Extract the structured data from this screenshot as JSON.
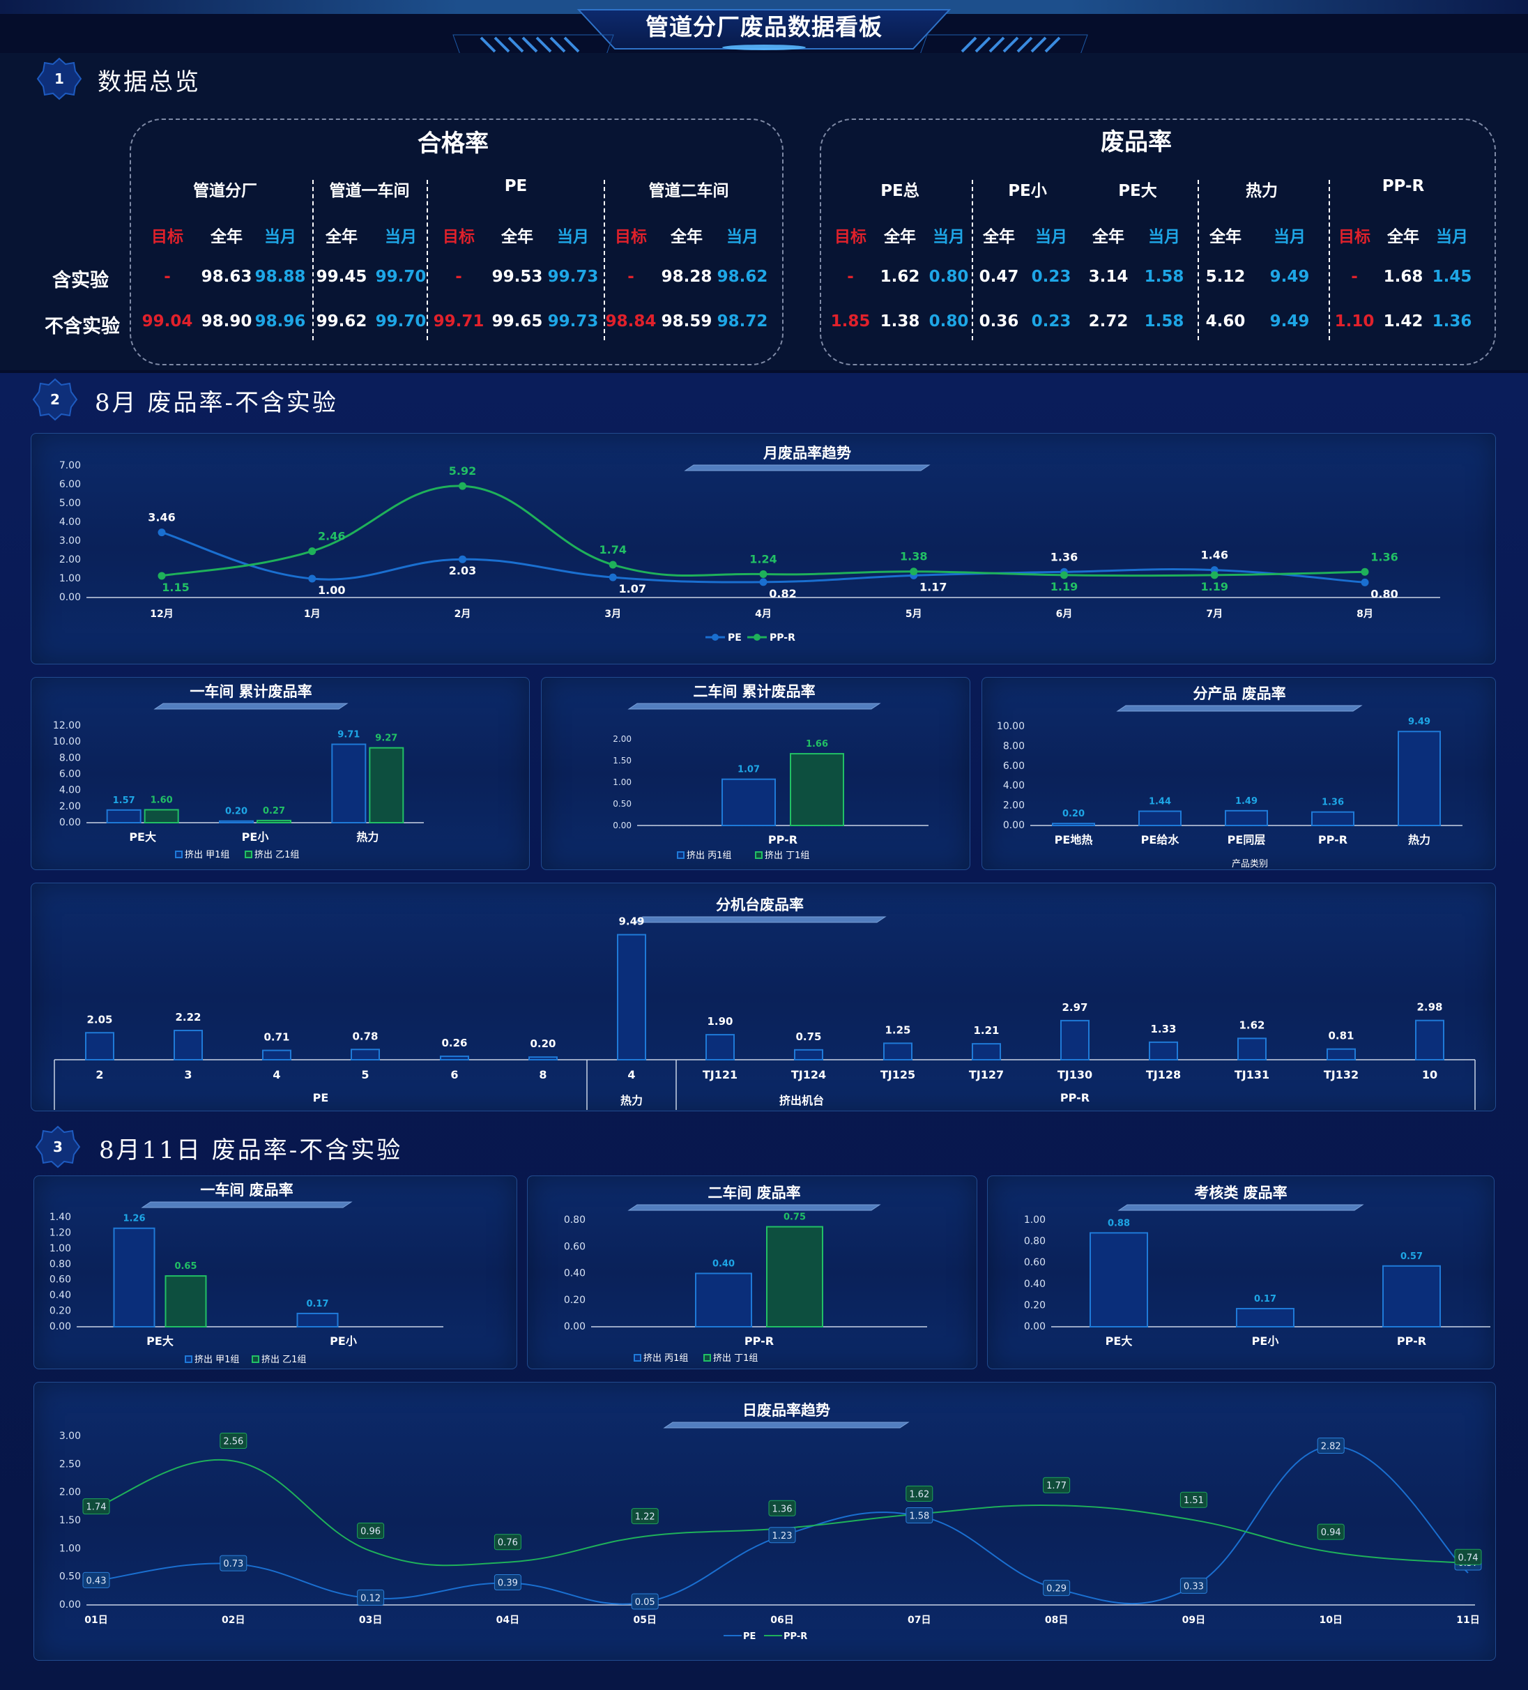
{
  "page_title": "管道分厂废品数据看板",
  "sections": [
    {
      "num": "1",
      "title": "数据总览"
    },
    {
      "num": "2",
      "title": "8月 废品率-不含实验"
    },
    {
      "num": "3",
      "title": "8月11日 废品率-不含实验"
    }
  ],
  "kpi": {
    "qualified": {
      "title": "合格率",
      "groups": [
        {
          "name": "管道分厂",
          "cols": [
            "目标",
            "全年",
            "当月"
          ],
          "rows": [
            [
              "-",
              "98.63",
              "98.88"
            ],
            [
              "99.04",
              "98.90",
              "98.96"
            ]
          ]
        },
        {
          "name": "管道一车间",
          "cols": [
            "全年",
            "当月"
          ],
          "rows": [
            [
              "99.45",
              "99.70"
            ],
            [
              "99.62",
              "99.70"
            ]
          ]
        },
        {
          "name": "PE",
          "cols": [
            "目标",
            "全年",
            "当月"
          ],
          "rows": [
            [
              "-",
              "99.53",
              "99.73"
            ],
            [
              "99.71",
              "99.65",
              "99.73"
            ]
          ]
        },
        {
          "name": "管道二车间",
          "cols": [
            "目标",
            "全年",
            "当月"
          ],
          "rows": [
            [
              "-",
              "98.28",
              "98.62"
            ],
            [
              "98.84",
              "98.59",
              "98.72"
            ]
          ]
        }
      ]
    },
    "scrap": {
      "title": "废品率",
      "groups": [
        {
          "name": "PE总",
          "cols": [
            "目标",
            "全年",
            "当月"
          ],
          "rows": [
            [
              "-",
              "1.62",
              "0.80"
            ],
            [
              "1.85",
              "1.38",
              "0.80"
            ]
          ]
        },
        {
          "name": "PE小",
          "cols": [
            "全年",
            "当月"
          ],
          "rows": [
            [
              "0.47",
              "0.23"
            ],
            [
              "0.36",
              "0.23"
            ]
          ]
        },
        {
          "name": "PE大",
          "cols": [
            "全年",
            "当月"
          ],
          "rows": [
            [
              "3.14",
              "1.58"
            ],
            [
              "2.72",
              "1.58"
            ]
          ]
        },
        {
          "name": "热力",
          "cols": [
            "全年",
            "当月"
          ],
          "rows": [
            [
              "5.12",
              "9.49"
            ],
            [
              "4.60",
              "9.49"
            ]
          ]
        },
        {
          "name": "PP-R",
          "cols": [
            "目标",
            "全年",
            "当月"
          ],
          "rows": [
            [
              "-",
              "1.68",
              "1.45"
            ],
            [
              "1.10",
              "1.42",
              "1.36"
            ]
          ]
        }
      ]
    },
    "row_labels": [
      "含实验",
      "不含实验"
    ]
  },
  "colors": {
    "blue": "#1a6fd0",
    "green": "#1fb15a",
    "bar_blue_fill": "#0a2e7a",
    "bar_blue_stroke": "#1f7ad8",
    "bar_green_fill": "#0d4f3f",
    "bar_green_stroke": "#22c065",
    "red": "#e0212b",
    "cyan": "#1ea6e6"
  },
  "chart_data": [
    {
      "id": "monthly",
      "type": "line",
      "title": "月废品率趋势",
      "categories": [
        "12月",
        "1月",
        "2月",
        "3月",
        "4月",
        "5月",
        "6月",
        "7月",
        "8月"
      ],
      "ylim": [
        0,
        7
      ],
      "yticks": [
        "0.00",
        "1.00",
        "2.00",
        "3.00",
        "4.00",
        "5.00",
        "6.00",
        "7.00"
      ],
      "series": [
        {
          "name": "PE",
          "values": [
            3.46,
            1.0,
            2.03,
            1.07,
            0.82,
            1.17,
            1.36,
            1.46,
            0.8
          ]
        },
        {
          "name": "PP-R",
          "values": [
            1.15,
            2.46,
            5.92,
            1.74,
            1.24,
            1.38,
            1.19,
            1.19,
            1.36
          ]
        }
      ],
      "legend": "bottom"
    },
    {
      "id": "ws1",
      "type": "bar",
      "title": "一车间 累计废品率",
      "categories": [
        "PE大",
        "PE小",
        "热力"
      ],
      "ylim": [
        0,
        12
      ],
      "yticks": [
        "0.00",
        "2.00",
        "4.00",
        "6.00",
        "8.00",
        "10.00",
        "12.00"
      ],
      "series": [
        {
          "name": "挤出 甲1组",
          "values": [
            1.57,
            0.2,
            9.71
          ]
        },
        {
          "name": "挤出 乙1组",
          "values": [
            1.6,
            0.27,
            9.27
          ]
        }
      ]
    },
    {
      "id": "ws2",
      "type": "bar",
      "title": "二车间 累计废品率",
      "categories": [
        "PP-R"
      ],
      "ylim": [
        0,
        2
      ],
      "yticks": [
        "0.00",
        "0.50",
        "1.00",
        "1.50",
        "2.00"
      ],
      "series": [
        {
          "name": "挤出 丙1组",
          "values": [
            1.07
          ]
        },
        {
          "name": "挤出 丁1组",
          "values": [
            1.66
          ]
        }
      ]
    },
    {
      "id": "product",
      "type": "bar",
      "title": "分产品 废品率",
      "categories": [
        "PE地热",
        "PE给水",
        "PE同层",
        "PP-R",
        "热力"
      ],
      "xlabel": "产品类别",
      "ylim": [
        0,
        10
      ],
      "yticks": [
        "0.00",
        "2.00",
        "4.00",
        "6.00",
        "8.00",
        "10.00"
      ],
      "series": [
        {
          "values": [
            0.2,
            1.44,
            1.49,
            1.36,
            9.49
          ]
        }
      ]
    },
    {
      "id": "machine",
      "type": "bar",
      "title": "分机台废品率",
      "categories": [
        "2",
        "3",
        "4",
        "5",
        "6",
        "8",
        "4",
        "TJ121",
        "TJ124",
        "TJ125",
        "TJ127",
        "TJ130",
        "TJ128",
        "TJ131",
        "TJ132",
        "10"
      ],
      "groups": [
        {
          "label": "PE",
          "span": 6
        },
        {
          "label": "热力",
          "span": 1
        },
        {
          "label": "挤出机台",
          "span": 0
        },
        {
          "label": "PP-R",
          "span": 9
        }
      ],
      "ylim": [
        0,
        10
      ],
      "series": [
        {
          "values": [
            2.05,
            2.22,
            0.71,
            0.78,
            0.26,
            0.2,
            9.49,
            1.9,
            0.75,
            1.25,
            1.21,
            2.97,
            1.33,
            1.62,
            0.81,
            2.98
          ]
        }
      ]
    },
    {
      "id": "d_ws1",
      "type": "bar",
      "title": "一车间 废品率",
      "categories": [
        "PE大",
        "PE小"
      ],
      "ylim": [
        0,
        1.4
      ],
      "yticks": [
        "0.00",
        "0.20",
        "0.40",
        "0.60",
        "0.80",
        "1.00",
        "1.20",
        "1.40"
      ],
      "series": [
        {
          "name": "挤出 甲1组",
          "values": [
            1.26,
            0.17
          ]
        },
        {
          "name": "挤出 乙1组",
          "values": [
            0.65,
            null
          ]
        }
      ]
    },
    {
      "id": "d_ws2",
      "type": "bar",
      "title": "二车间 废品率",
      "categories": [
        "PP-R"
      ],
      "ylim": [
        0,
        0.8
      ],
      "yticks": [
        "0.00",
        "0.20",
        "0.40",
        "0.60",
        "0.80"
      ],
      "series": [
        {
          "name": "挤出 丙1组",
          "values": [
            0.4
          ]
        },
        {
          "name": "挤出 丁1组",
          "values": [
            0.75
          ]
        }
      ]
    },
    {
      "id": "d_assess",
      "type": "bar",
      "title": "考核类 废品率",
      "categories": [
        "PE大",
        "PE小",
        "PP-R"
      ],
      "ylim": [
        0,
        1
      ],
      "yticks": [
        "0.00",
        "0.20",
        "0.40",
        "0.60",
        "0.80",
        "1.00"
      ],
      "series": [
        {
          "values": [
            0.88,
            0.17,
            0.57
          ]
        }
      ]
    },
    {
      "id": "daily",
      "type": "line",
      "title": "日废品率趋势",
      "categories": [
        "01日",
        "02日",
        "03日",
        "04日",
        "05日",
        "06日",
        "07日",
        "08日",
        "09日",
        "10日",
        "11日"
      ],
      "ylim": [
        0,
        3
      ],
      "yticks": [
        "0.00",
        "0.50",
        "1.00",
        "1.50",
        "2.00",
        "2.50",
        "3.00"
      ],
      "series": [
        {
          "name": "PE",
          "values": [
            0.43,
            0.73,
            0.12,
            0.39,
            0.05,
            1.23,
            1.58,
            0.29,
            0.33,
            2.82,
            0.57
          ]
        },
        {
          "name": "PP-R",
          "values": [
            1.74,
            2.56,
            0.96,
            0.76,
            1.22,
            1.36,
            1.62,
            1.77,
            1.51,
            0.94,
            0.74
          ]
        }
      ],
      "legend": "bottom"
    }
  ]
}
